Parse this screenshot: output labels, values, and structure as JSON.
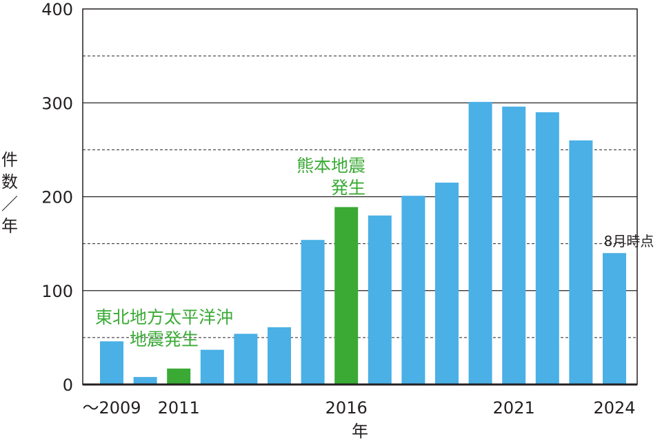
{
  "chart_data": {
    "type": "bar",
    "title": "",
    "xlabel": "年",
    "ylabel": [
      "件",
      "数",
      "／",
      "年"
    ],
    "ylim": [
      0,
      400
    ],
    "y_ticks": [
      "0",
      "100",
      "200",
      "300",
      "400"
    ],
    "gridlines": {
      "solid": [
        100,
        200,
        300
      ],
      "dashed": [
        50,
        150,
        250,
        350
      ]
    },
    "x_tick_labels": [
      {
        "category_index": 0,
        "text": "～2009"
      },
      {
        "category_index": 2,
        "text": "2011"
      },
      {
        "category_index": 7,
        "text": "2016"
      },
      {
        "category_index": 12,
        "text": "2021"
      },
      {
        "category_index": 15,
        "text": "2024"
      }
    ],
    "categories": [
      "～2009",
      "2010",
      "2011",
      "2012",
      "2013",
      "2014",
      "2015",
      "2016",
      "2017",
      "2018",
      "2019",
      "2020",
      "2021",
      "2022",
      "2023",
      "2024"
    ],
    "values": [
      46,
      8,
      17,
      37,
      54,
      61,
      154,
      189,
      180,
      201,
      215,
      301,
      296,
      290,
      260,
      140
    ],
    "highlighted": [
      2,
      7
    ],
    "colors": {
      "bar": "#4ab0e6",
      "highlight": "#3aaa35",
      "grid": "#231f20",
      "text": "#231f20"
    },
    "annotations": [
      {
        "id": "tohoku",
        "category_index": 2,
        "lines": [
          "東北地方太平洋沖",
          "地震発生"
        ],
        "color": "#3aaa35"
      },
      {
        "id": "kumamoto",
        "category_index": 7,
        "lines": [
          "熊本地震",
          "発生"
        ],
        "color": "#3aaa35"
      },
      {
        "id": "aug",
        "category_index": 15,
        "lines": [
          "8月時点"
        ],
        "color": "#231f20"
      }
    ]
  }
}
